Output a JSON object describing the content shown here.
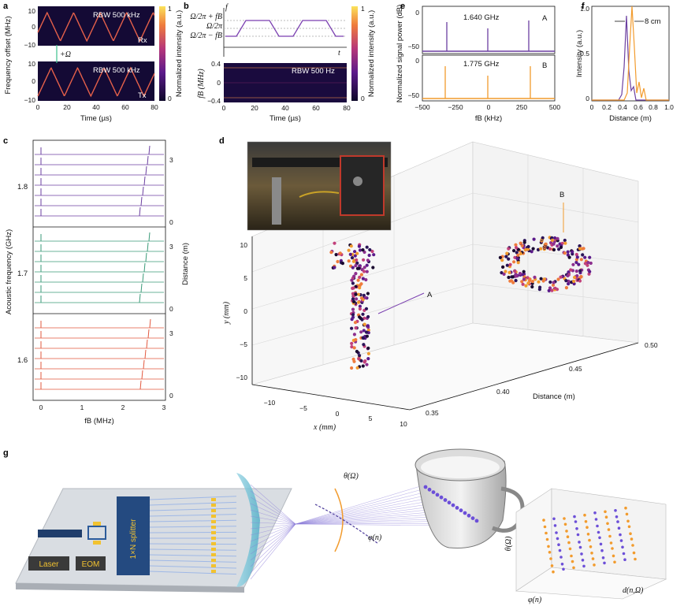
{
  "panel_labels": {
    "a": "a",
    "b": "b",
    "c": "c",
    "d": "d",
    "e": "e",
    "f": "f",
    "g": "g"
  },
  "panel_a": {
    "ylabel": "Frequency offset (MHz)",
    "xlabel": "Time (µs)",
    "colorbar_label": "Normalized intensity (a.u.)",
    "colorbar_ticks": [
      "1",
      "0"
    ],
    "rbw_top": "RBW 500 kHz",
    "rbw_bottom": "RBW 500 kHz",
    "tag_top": "Rx",
    "tag_bottom": "Tx",
    "shift_label": "+Ω",
    "yticks_top": [
      "10",
      "0",
      "−10"
    ],
    "yticks_bottom": [
      "10",
      "0",
      "−10"
    ],
    "xticks": [
      "0",
      "20",
      "40",
      "60",
      "80"
    ]
  },
  "panel_b": {
    "f_axis": "f",
    "t_axis": "t",
    "levels": [
      "Ω/2π + fB",
      "Ω/2π",
      "Ω/2π − fB"
    ],
    "rbw": "RBW 500 Hz",
    "ylabel": "fB (MHz)",
    "yticks": [
      "0.4",
      "0",
      "−0.4"
    ],
    "xlabel": "Time (µs)",
    "xticks": [
      "0",
      "20",
      "40",
      "60",
      "80"
    ],
    "colorbar_label": "Normalized intensity (a.u.)",
    "colorbar_ticks": [
      "1",
      "0"
    ]
  },
  "panel_c": {
    "ylabel": "Acoustic frequency (GHz)",
    "ylabel_right": "Distance (m)",
    "groups": [
      "1.8",
      "1.7",
      "1.6"
    ],
    "right_ticks": [
      "3",
      "0"
    ],
    "xlabel": "fB (MHz)",
    "xticks": [
      "0",
      "1",
      "2",
      "3"
    ],
    "colors": [
      "#6b3fa0",
      "#3a9a78",
      "#e2583e"
    ]
  },
  "panel_d": {
    "ylabel": "y (mm)",
    "yticks": [
      "10",
      "5",
      "0",
      "−5",
      "−10"
    ],
    "xlabel": "x (mm)",
    "xticks": [
      "−10",
      "−5",
      "0",
      "5",
      "10"
    ],
    "zlabel": "Distance (m)",
    "zticks": [
      "0.35",
      "0.40",
      "0.45",
      "0.50"
    ],
    "label_a": "A",
    "label_b": "B"
  },
  "panel_e": {
    "ylabel": "Normalized signal power (dB)",
    "xlabel": "fB (kHz)",
    "xticks": [
      "−500",
      "−250",
      "0",
      "250",
      "500"
    ],
    "yticks_top": [
      "0",
      "−50"
    ],
    "yticks_bottom": [
      "0",
      "−50"
    ],
    "trace_a_freq": "1.640 GHz",
    "trace_b_freq": "1.775 GHz",
    "label_a": "A",
    "label_b": "B",
    "color_a": "#6b3fa0",
    "color_b": "#f29b2d"
  },
  "panel_f": {
    "ylabel": "Intensity (a.u.)",
    "xlabel": "Distance (m)",
    "xticks": [
      "0",
      "0.2",
      "0.4",
      "0.6",
      "0.8",
      "1.0"
    ],
    "yticks": [
      "1.0",
      "0.5",
      "0"
    ],
    "resolution": "8 cm"
  },
  "panel_g": {
    "laser": "Laser",
    "eom": "EOM",
    "splitter": "1×N splitter",
    "theta_label": "θ(Ω)",
    "phi_label": "φ(n)",
    "inset_theta": "θ(Ω)",
    "inset_phi": "φ(n)",
    "inset_d": "d(n,Ω)"
  }
}
